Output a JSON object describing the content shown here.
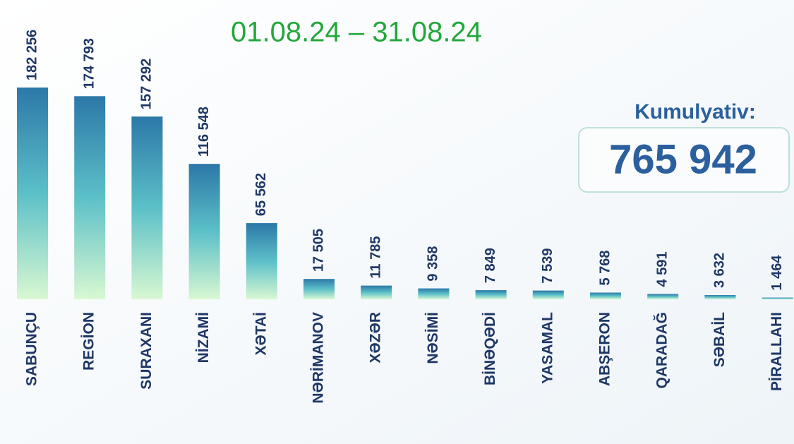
{
  "chart_data": {
    "type": "bar",
    "title": "01.08.24 – 31.08.24",
    "categories": [
      "SABUNÇU",
      "REGİON",
      "SURAXANI",
      "NİZAMİ",
      "XƏTAİ",
      "NƏRİMANOV",
      "XƏZƏR",
      "NƏSİMİ",
      "BİNƏQƏDİ",
      "YASAMAL",
      "ABŞERON",
      "QARADAĞ",
      "SƏBAİL",
      "PİRALLAHI"
    ],
    "values": [
      182256,
      174793,
      157292,
      116548,
      65562,
      17505,
      11785,
      9358,
      7849,
      7539,
      5768,
      4591,
      3632,
      1464
    ],
    "value_labels": [
      "182 256",
      "174 793",
      "157 292",
      "116 548",
      "65 562",
      "17 505",
      "11 785",
      "9 358",
      "7 849",
      "7 539",
      "5 768",
      "4 591",
      "3 632",
      "1 464"
    ],
    "color_top": "#2c78a8",
    "color_bottom": "#d9f8d2",
    "annotations": {
      "cumulative_label": "Kumulyativ:",
      "cumulative_value": "765 942"
    }
  }
}
